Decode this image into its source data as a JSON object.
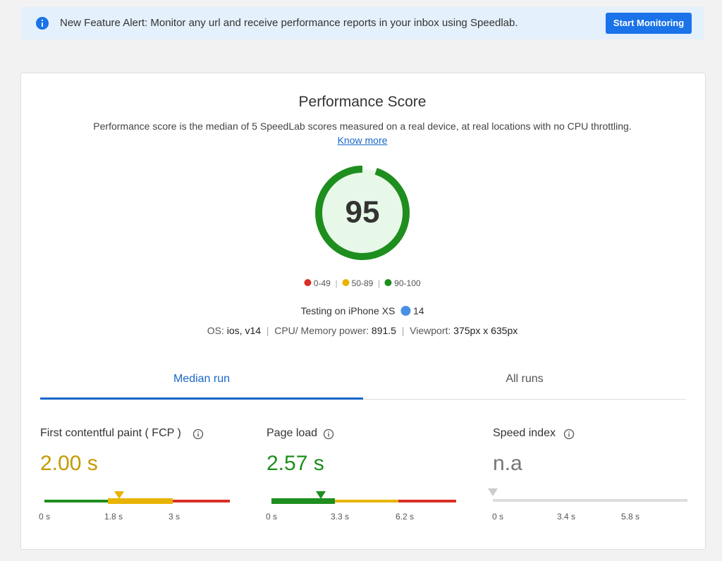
{
  "banner": {
    "text": "New Feature Alert: Monitor any url and receive performance reports in your inbox using Speedlab.",
    "button": "Start Monitoring"
  },
  "score": {
    "title": "Performance Score",
    "description": "Performance score is the median of 5 SpeedLab scores measured on a real device, at real locations with no CPU throttling.",
    "link": "Know more",
    "value": 95,
    "legend": [
      "0-49",
      "50-89",
      "90-100"
    ]
  },
  "device": {
    "testing": "Testing on iPhone XS",
    "browser_version": "14",
    "os_label": "OS:",
    "os": "ios, v14",
    "cpu_label": "CPU/ Memory power:",
    "cpu": "891.5",
    "viewport_label": "Viewport:",
    "viewport": "375px x 635px"
  },
  "tabs": [
    "Median run",
    "All runs"
  ],
  "metrics": [
    {
      "label": "First contentful paint ( FCP )",
      "value": "2.00 s",
      "scale": [
        "0 s",
        "1.8 s",
        "3 s"
      ]
    },
    {
      "label": "Page load",
      "value": "2.57 s",
      "scale": [
        "0 s",
        "3.3 s",
        "6.2 s"
      ]
    },
    {
      "label": "Speed index",
      "value": "n.a",
      "scale": [
        "0 s",
        "3.4 s",
        "5.8 s"
      ]
    }
  ]
}
